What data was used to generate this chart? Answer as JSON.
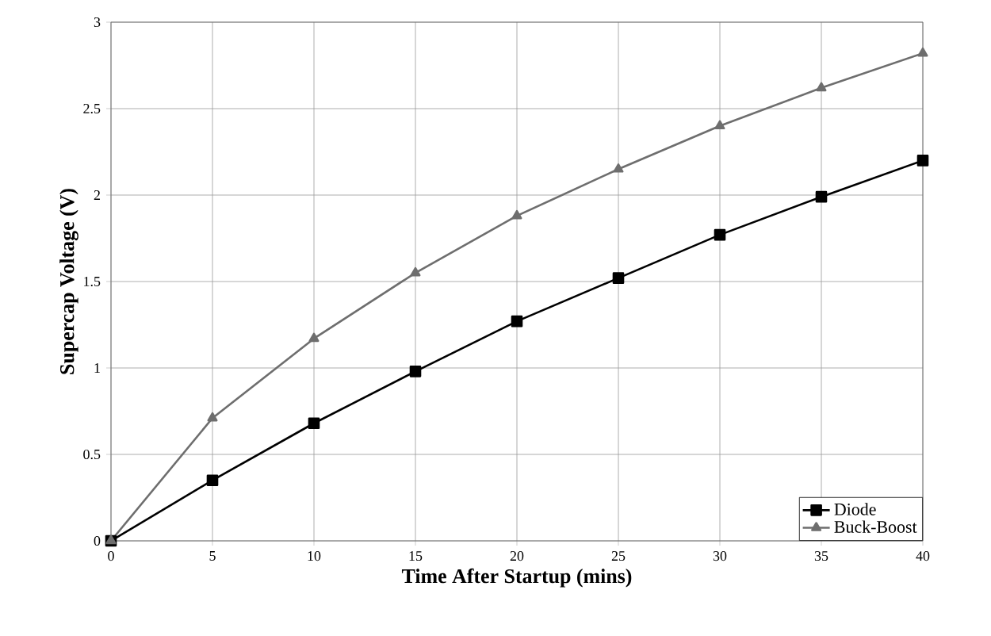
{
  "chart_data": {
    "type": "line",
    "xlabel": "Time After Startup (mins)",
    "ylabel": "Supercap Voltage (V)",
    "x": [
      0,
      5,
      10,
      15,
      20,
      25,
      30,
      35,
      40
    ],
    "series": [
      {
        "name": "Diode",
        "color": "#000000",
        "marker": "square",
        "values": [
          0,
          0.35,
          0.68,
          0.98,
          1.27,
          1.52,
          1.77,
          1.99,
          2.2
        ]
      },
      {
        "name": "Buck-Boost",
        "color": "#6e6e6e",
        "marker": "triangle",
        "values": [
          0,
          0.71,
          1.17,
          1.55,
          1.88,
          2.15,
          2.4,
          2.62,
          2.82
        ]
      }
    ],
    "xlim": [
      0,
      40
    ],
    "xticks": [
      0,
      5,
      10,
      15,
      20,
      25,
      30,
      35,
      40
    ],
    "ylim": [
      0,
      3
    ],
    "yticks": [
      0,
      0.5,
      1,
      1.5,
      2,
      2.5,
      3
    ],
    "grid": true,
    "legend": "bottom right",
    "line_style": "solid"
  }
}
